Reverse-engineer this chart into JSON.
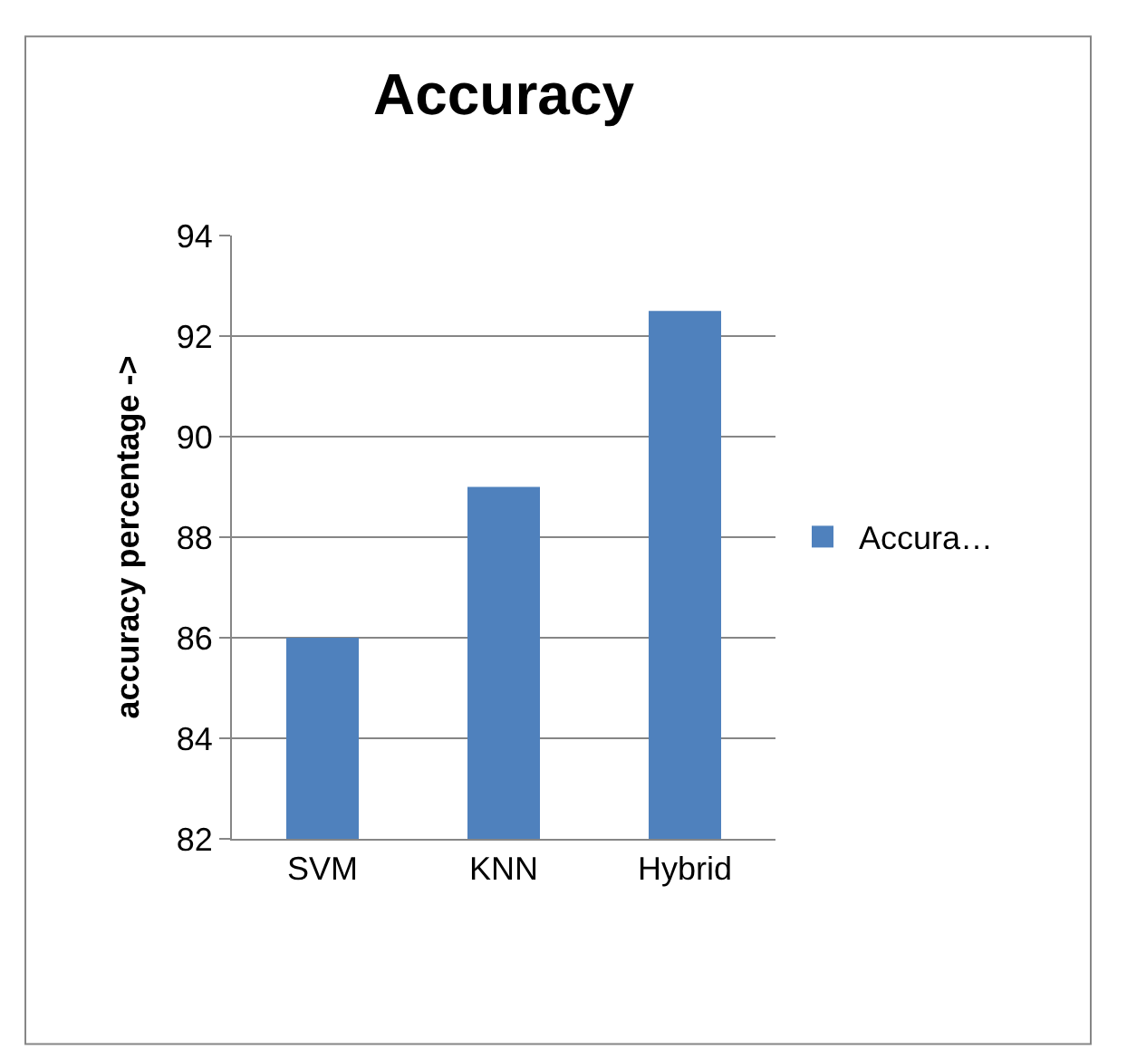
{
  "chart_data": {
    "type": "bar",
    "title": "Accuracy",
    "ylabel": "accuracy percentage ->",
    "categories": [
      "SVM",
      "KNN",
      "Hybrid"
    ],
    "series": [
      {
        "name": "Accura…",
        "color": "#4f81bd",
        "values": [
          86,
          89,
          92.5
        ]
      }
    ],
    "ylim": [
      82,
      94
    ],
    "yticks": [
      82,
      84,
      86,
      88,
      90,
      92,
      94
    ],
    "grid": "y",
    "legend": "right"
  }
}
